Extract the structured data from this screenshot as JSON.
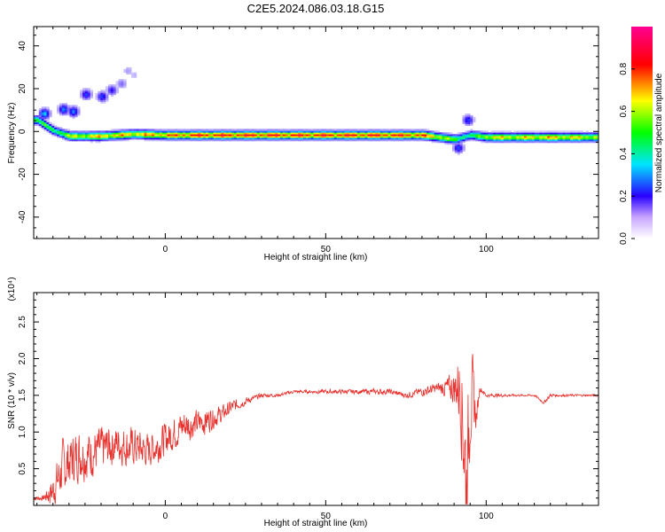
{
  "title": "C2E5.2024.086.03.18.G15",
  "chart_data": [
    {
      "type": "heatmap",
      "xlabel": "Height of straight line (km)",
      "ylabel": "Frequency (Hz)",
      "xlim": [
        -41,
        135
      ],
      "ylim": [
        -50,
        49
      ],
      "xticks": [
        0,
        50,
        100
      ],
      "yticks": [
        40,
        20,
        0,
        -20,
        -40
      ],
      "grid": false,
      "colorbar": {
        "label": "Normalized spectral amplitude",
        "range": [
          0,
          1
        ],
        "ticks": [
          0.0,
          0.2,
          0.4,
          0.6,
          0.8
        ],
        "colormap": [
          "#ffffff",
          "#2a00ff",
          "#00e5ff",
          "#00ff00",
          "#ffff00",
          "#ff0000",
          "#ff0090"
        ]
      },
      "ridge": {
        "frequency_hz": [
          5,
          0,
          -2.5,
          -2.5,
          -1.5,
          -2,
          -2,
          -2,
          -2,
          -2,
          -2,
          -2,
          -2,
          -2,
          -4,
          -2,
          -3,
          -3,
          -3,
          -3
        ],
        "height_km": [
          -40,
          -35,
          -30,
          -20,
          -10,
          0,
          10,
          20,
          30,
          40,
          50,
          60,
          70,
          80,
          90,
          95,
          100,
          110,
          120,
          135
        ],
        "amplitude": [
          0.6,
          0.55,
          0.7,
          0.8,
          0.8,
          0.85,
          0.95,
          0.95,
          0.95,
          0.95,
          0.95,
          0.95,
          0.95,
          0.9,
          0.6,
          0.5,
          0.75,
          0.75,
          0.8,
          0.7
        ]
      },
      "blobs": [
        {
          "x": -25,
          "y": 17,
          "v": 0.25
        },
        {
          "x": -20,
          "y": 16,
          "v": 0.25
        },
        {
          "x": -17,
          "y": 19,
          "v": 0.2
        },
        {
          "x": -14,
          "y": 22,
          "v": 0.12
        },
        {
          "x": -12,
          "y": 28,
          "v": 0.08
        },
        {
          "x": -10,
          "y": 26,
          "v": 0.06
        },
        {
          "x": -32,
          "y": 10,
          "v": 0.3
        },
        {
          "x": -29,
          "y": 9,
          "v": 0.3
        },
        {
          "x": -38,
          "y": 8,
          "v": 0.35
        },
        {
          "x": 94,
          "y": 5,
          "v": 0.25
        },
        {
          "x": 91,
          "y": -8,
          "v": 0.25
        }
      ]
    },
    {
      "type": "line",
      "xlabel": "Height of straight line (km)",
      "ylabel": "SNR (10 * v/v)",
      "y_multiplier": "(x10⁴)",
      "xlim": [
        -41,
        135
      ],
      "ylim": [
        0,
        2.9
      ],
      "xticks": [
        0,
        50,
        100
      ],
      "yticks": [
        0.5,
        1.0,
        1.5,
        2.0,
        2.5
      ],
      "grid": false,
      "series": [
        {
          "color": "#e8302c",
          "x": [
            -41,
            -38,
            -35,
            -32,
            -30,
            -27,
            -24,
            -21,
            -18,
            -15,
            -12,
            -9,
            -6,
            -3,
            0,
            3,
            6,
            9,
            12,
            15,
            18,
            21,
            24,
            27,
            30,
            35,
            40,
            45,
            50,
            55,
            60,
            65,
            70,
            75,
            80,
            85,
            88,
            90,
            92,
            93,
            94,
            95,
            96,
            97,
            98,
            100,
            105,
            110,
            115,
            118,
            120,
            125,
            130,
            135
          ],
          "y": [
            0.1,
            0.1,
            0.2,
            0.5,
            0.6,
            0.7,
            0.7,
            0.75,
            0.8,
            0.85,
            0.8,
            0.8,
            0.75,
            0.8,
            0.9,
            1.0,
            1.1,
            1.1,
            1.15,
            1.2,
            1.25,
            1.35,
            1.4,
            1.45,
            1.5,
            1.5,
            1.55,
            1.55,
            1.55,
            1.55,
            1.55,
            1.55,
            1.55,
            1.5,
            1.55,
            1.6,
            1.6,
            1.6,
            1.65,
            1.0,
            0.2,
            1.6,
            1.4,
            1.2,
            1.6,
            1.5,
            1.5,
            1.5,
            1.5,
            1.4,
            1.5,
            1.5,
            1.5,
            1.5
          ],
          "noise_amplitude": [
            0.05,
            0.05,
            0.3,
            0.5,
            0.45,
            0.45,
            0.45,
            0.4,
            0.4,
            0.35,
            0.35,
            0.35,
            0.3,
            0.3,
            0.3,
            0.3,
            0.3,
            0.25,
            0.25,
            0.2,
            0.15,
            0.12,
            0.08,
            0.05,
            0.04,
            0.03,
            0.03,
            0.03,
            0.04,
            0.04,
            0.04,
            0.05,
            0.05,
            0.05,
            0.08,
            0.1,
            0.2,
            0.3,
            0.8,
            1.2,
            1.2,
            1.1,
            0.6,
            0.2,
            0.06,
            0.03,
            0.03,
            0.02,
            0.02,
            0.03,
            0.03,
            0.02,
            0.02,
            0.02
          ]
        }
      ]
    }
  ]
}
